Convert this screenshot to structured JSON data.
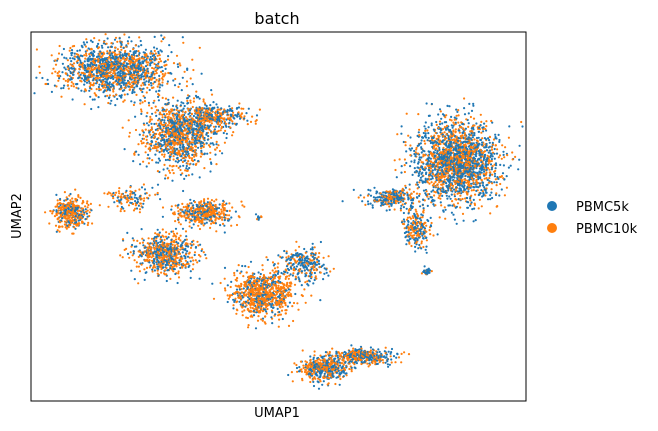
{
  "chart_data": {
    "type": "scatter",
    "title": "batch",
    "xlabel": "UMAP1",
    "ylabel": "UMAP2",
    "grid": false,
    "ticks": false,
    "legend_position": "right",
    "xlim": [
      0,
      100
    ],
    "ylim": [
      0,
      100
    ],
    "series": [
      {
        "name": "PBMC5k",
        "color": "#1f77b4"
      },
      {
        "name": "PBMC10k",
        "color": "#ff7f0e"
      }
    ],
    "clusters": [
      {
        "cx": 17,
        "cy": 90,
        "rx": 10,
        "ry": 6.5,
        "n": 1400,
        "mix": 0.55
      },
      {
        "cx": 30,
        "cy": 72,
        "rx": 6.5,
        "ry": 8,
        "n": 1100,
        "mix": 0.5
      },
      {
        "cx": 37,
        "cy": 77,
        "rx": 6,
        "ry": 3,
        "n": 350,
        "mix": 0.45
      },
      {
        "cx": 8,
        "cy": 51,
        "rx": 3,
        "ry": 3.5,
        "n": 380,
        "mix": 0.3
      },
      {
        "cx": 27,
        "cy": 40,
        "rx": 5.5,
        "ry": 5,
        "n": 650,
        "mix": 0.45
      },
      {
        "cx": 35,
        "cy": 51,
        "rx": 5,
        "ry": 3,
        "n": 450,
        "mix": 0.35
      },
      {
        "cx": 47,
        "cy": 29,
        "rx": 5.5,
        "ry": 5.5,
        "n": 850,
        "mix": 0.3
      },
      {
        "cx": 55,
        "cy": 37,
        "rx": 4,
        "ry": 4,
        "n": 250,
        "mix": 0.65
      },
      {
        "cx": 86,
        "cy": 65,
        "rx": 7.5,
        "ry": 10,
        "n": 2000,
        "mix": 0.55
      },
      {
        "cx": 73,
        "cy": 55,
        "rx": 5,
        "ry": 2,
        "n": 250,
        "mix": 0.6
      },
      {
        "cx": 78,
        "cy": 47,
        "rx": 2.5,
        "ry": 5,
        "n": 230,
        "mix": 0.55
      },
      {
        "cx": 59,
        "cy": 9,
        "rx": 4.5,
        "ry": 3,
        "n": 450,
        "mix": 0.5
      },
      {
        "cx": 67,
        "cy": 12,
        "rx": 6,
        "ry": 2,
        "n": 350,
        "mix": 0.55
      },
      {
        "cx": 80,
        "cy": 35,
        "rx": 0.8,
        "ry": 0.9,
        "n": 40,
        "mix": 0.8
      },
      {
        "cx": 46,
        "cy": 50,
        "rx": 0.8,
        "ry": 0.8,
        "n": 10,
        "mix": 0.7
      },
      {
        "cx": 20,
        "cy": 55,
        "rx": 4,
        "ry": 3,
        "n": 120,
        "mix": 0.4
      }
    ]
  }
}
